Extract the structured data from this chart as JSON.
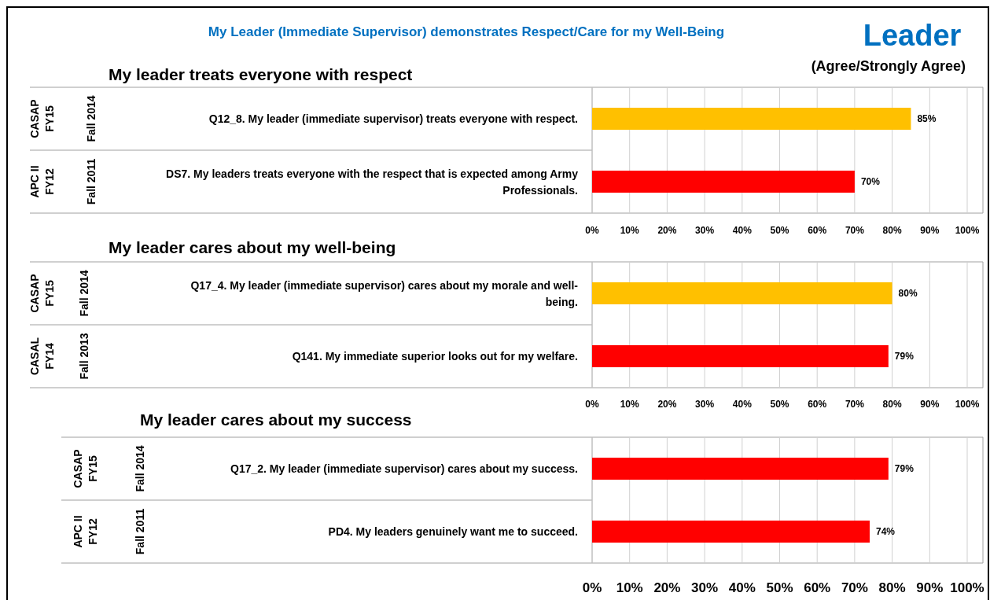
{
  "chart_data": [
    {
      "type": "bar",
      "orientation": "horizontal",
      "title": "My leader treats everyone with respect",
      "categories": [
        "Q12_8. My leader (immediate supervisor) treats everyone with respect.",
        "DS7. My leaders treats everyone with the respect that is expected among Army Professionals."
      ],
      "values": [
        85,
        70
      ],
      "value_labels": [
        "85%",
        "70%"
      ],
      "colors": [
        "#ffc000",
        "#ff0000"
      ],
      "xlim": [
        0,
        100
      ],
      "xticks": [
        {
          "value": 0,
          "label": "0%"
        },
        {
          "value": 10,
          "label": "10%"
        },
        {
          "value": 20,
          "label": "20%"
        },
        {
          "value": 30,
          "label": "30%"
        },
        {
          "value": 40,
          "label": "40%"
        },
        {
          "value": 50,
          "label": "50%"
        },
        {
          "value": 60,
          "label": "60%"
        },
        {
          "value": 70,
          "label": "70%"
        },
        {
          "value": 80,
          "label": "80%"
        },
        {
          "value": 90,
          "label": "90%"
        },
        {
          "value": 100,
          "label": "100%"
        }
      ],
      "grid": "x",
      "annotations": [
        "My Leader (Immediate Supervisor) demonstrates Respect/Care for my Well-Being",
        "Leader",
        "(Agree/Strongly Agree)",
        "CASAP\nFY15",
        "Fall 2014",
        "APC II\nFY12",
        "Fall 2011"
      ]
    },
    {
      "type": "bar",
      "orientation": "horizontal",
      "title": "My leader cares about my well-being",
      "categories": [
        "Q17_4. My leader (immediate supervisor) cares about my morale and well-being.",
        "Q141. My immediate superior looks out for my welfare."
      ],
      "values": [
        80,
        79
      ],
      "value_labels": [
        "80%",
        "79%"
      ],
      "colors": [
        "#ffc000",
        "#ff0000"
      ],
      "xlim": [
        0,
        100
      ],
      "xticks": [
        {
          "value": 0,
          "label": "0%"
        },
        {
          "value": 10,
          "label": "10%"
        },
        {
          "value": 20,
          "label": "20%"
        },
        {
          "value": 30,
          "label": "30%"
        },
        {
          "value": 40,
          "label": "40%"
        },
        {
          "value": 50,
          "label": "50%"
        },
        {
          "value": 60,
          "label": "60%"
        },
        {
          "value": 70,
          "label": "70%"
        },
        {
          "value": 80,
          "label": "80%"
        },
        {
          "value": 90,
          "label": "90%"
        },
        {
          "value": 100,
          "label": "100%"
        }
      ],
      "grid": "x",
      "annotations": [
        "CASAP\nFY15",
        "Fall 2014",
        "CASAL\nFY14",
        "Fall 2013"
      ]
    },
    {
      "type": "bar",
      "orientation": "horizontal",
      "title": "My leader cares about my success",
      "categories": [
        "Q17_2. My leader (immediate supervisor) cares about my success.",
        "PD4. My leaders genuinely want me to succeed."
      ],
      "values": [
        79,
        74
      ],
      "value_labels": [
        "79%",
        "74%"
      ],
      "colors": [
        "#ff0000",
        "#ff0000"
      ],
      "xlim": [
        0,
        100
      ],
      "xticks": [
        {
          "value": 0,
          "label": "0%"
        },
        {
          "value": 10,
          "label": "10%"
        },
        {
          "value": 20,
          "label": "20%"
        },
        {
          "value": 30,
          "label": "30%"
        },
        {
          "value": 40,
          "label": "40%"
        },
        {
          "value": 50,
          "label": "50%"
        },
        {
          "value": 60,
          "label": "60%"
        },
        {
          "value": 70,
          "label": "70%"
        },
        {
          "value": 80,
          "label": "80%"
        },
        {
          "value": 90,
          "label": "90%"
        },
        {
          "value": 100,
          "label": "100%"
        }
      ],
      "grid": "x",
      "annotations": [
        "CASAP\nFY15",
        "Fall 2014",
        "APC II\nFY12",
        "Fall 2011"
      ]
    }
  ]
}
